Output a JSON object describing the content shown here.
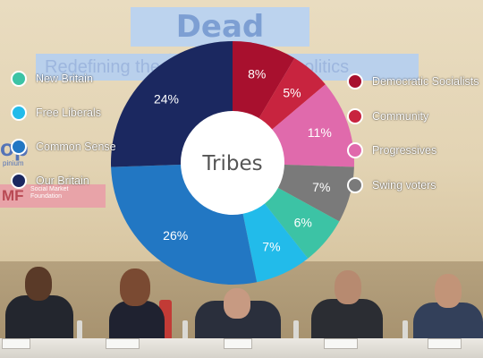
{
  "background": {
    "screen_title": "Dead Centre:",
    "screen_subtitle": "Redefining the centre of British politics",
    "logo_text": "op",
    "logo_subtext": "pinium",
    "logo2_text": "MF",
    "logo2_subtext": "Social Market\nFoundation"
  },
  "chart_data": {
    "type": "pie",
    "style": "donut",
    "center_label": "Tribes",
    "start_angle_deg": 0,
    "direction": "clockwise",
    "slices": [
      {
        "name": "Democratic Socialists",
        "value": 8,
        "label": "8%",
        "color": "#a8102e"
      },
      {
        "name": "Community",
        "value": 5,
        "label": "5%",
        "color": "#c8243f"
      },
      {
        "name": "Progressives",
        "value": 11,
        "label": "11%",
        "color": "#e06aac"
      },
      {
        "name": "Swing voters",
        "value": 7,
        "label": "7%",
        "color": "#7a7a7a"
      },
      {
        "name": "New Britain",
        "value": 6,
        "label": "6%",
        "color": "#3cc3a5"
      },
      {
        "name": "Free Liberals",
        "value": 7,
        "label": "7%",
        "color": "#22bbea"
      },
      {
        "name": "Common Sense",
        "value": 26,
        "label": "26%",
        "color": "#2277c3"
      },
      {
        "name": "Our Britain",
        "value": 24,
        "label": "24%",
        "color": "#1b2860"
      }
    ],
    "legend_left": [
      "New Britain",
      "Free Liberals",
      "Common Sense",
      "Our Britain"
    ],
    "legend_right": [
      "Democratic Socialists",
      "Community",
      "Progressives",
      "Swing voters"
    ]
  }
}
